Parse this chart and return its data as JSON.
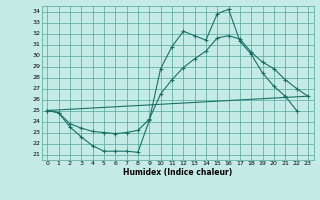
{
  "title": "",
  "xlabel": "Humidex (Indice chaleur)",
  "bg_color": "#c5ebe6",
  "grid_color": "#52a89e",
  "line_color": "#1a7068",
  "xlim": [
    -0.5,
    23.5
  ],
  "ylim": [
    20.5,
    34.5
  ],
  "xticks": [
    0,
    1,
    2,
    3,
    4,
    5,
    6,
    7,
    8,
    9,
    10,
    11,
    12,
    13,
    14,
    15,
    16,
    17,
    18,
    19,
    20,
    21,
    22,
    23
  ],
  "yticks": [
    21,
    22,
    23,
    24,
    25,
    26,
    27,
    28,
    29,
    30,
    31,
    32,
    33,
    34
  ],
  "line1_x": [
    0,
    1,
    2,
    3,
    4,
    5,
    6,
    7,
    8,
    9,
    10,
    11,
    12,
    13,
    14,
    15,
    16,
    17,
    18,
    19,
    20,
    21,
    22
  ],
  "line1_y": [
    25.0,
    24.8,
    23.5,
    22.6,
    21.8,
    21.3,
    21.3,
    21.3,
    21.2,
    24.1,
    28.8,
    30.8,
    32.2,
    31.8,
    31.4,
    33.8,
    34.2,
    31.3,
    30.1,
    28.4,
    27.2,
    26.3,
    25.0
  ],
  "line2_x": [
    0,
    1,
    2,
    3,
    4,
    5,
    6,
    7,
    8,
    9,
    10,
    11,
    12,
    13,
    14,
    15,
    16,
    17,
    18,
    19,
    20,
    21,
    22,
    23
  ],
  "line2_y": [
    25.0,
    24.8,
    23.8,
    23.4,
    23.1,
    23.0,
    22.9,
    23.0,
    23.2,
    24.2,
    26.5,
    27.8,
    28.9,
    29.7,
    30.4,
    31.6,
    31.8,
    31.5,
    30.3,
    29.4,
    28.8,
    27.8,
    27.0,
    26.3
  ],
  "line3_x": [
    0,
    23
  ],
  "line3_y": [
    25.0,
    26.3
  ]
}
